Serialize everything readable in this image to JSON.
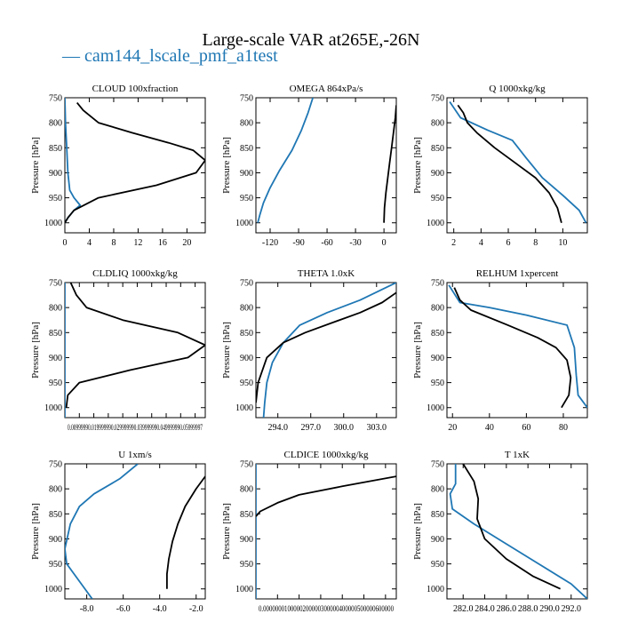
{
  "figure": {
    "title": "Large-scale VAR at265E,-26N",
    "legend_label": "— cam144_lscale_pmf_a1test"
  },
  "colors": {
    "run": "#1f77b4",
    "obs": "#000000"
  },
  "chart_data": [
    {
      "type": "line",
      "title": "CLOUD  100xfraction",
      "ylabel": "Pressure [hPa]",
      "xlim": [
        0,
        23
      ],
      "ylim": [
        1020,
        750
      ],
      "xticks": [
        0,
        4,
        8,
        12,
        16,
        20
      ],
      "xtick_labels": [
        "0",
        "4",
        "8",
        "12",
        "16",
        "20"
      ],
      "yticks": [
        750,
        800,
        850,
        900,
        950,
        1000
      ],
      "ytick_labels": [
        "750",
        "800",
        "850",
        "900",
        "950",
        "1000"
      ],
      "series": [
        {
          "name": "cam144_lscale_pmf_a1test",
          "color": "#1f77b4",
          "x": [
            0,
            0.1,
            0.3,
            0.5,
            0.8,
            1.5,
            2.5,
            1.5,
            0.5,
            0
          ],
          "y": [
            750,
            800,
            850,
            900,
            935,
            950,
            965,
            975,
            990,
            1000
          ]
        },
        {
          "name": "",
          "color": "#000000",
          "x": [
            2,
            3,
            5.5,
            11,
            17,
            21,
            23,
            21.5,
            15,
            5.5,
            1.5,
            0.5,
            0
          ],
          "y": [
            760,
            775,
            800,
            820,
            840,
            855,
            875,
            900,
            925,
            950,
            975,
            990,
            1000
          ]
        }
      ]
    },
    {
      "type": "line",
      "title": "OMEGA  864xPa/s",
      "ylabel": "Pressure [hPa]",
      "xlim": [
        -135,
        13
      ],
      "ylim": [
        1020,
        750
      ],
      "xticks": [
        -120,
        -90,
        -60,
        -30,
        0
      ],
      "xtick_labels": [
        "-120",
        "-90",
        "-60",
        "-30",
        "0"
      ],
      "yticks": [
        750,
        800,
        850,
        900,
        950,
        1000
      ],
      "ytick_labels": [
        "750",
        "800",
        "850",
        "900",
        "950",
        "1000"
      ],
      "series": [
        {
          "name": "cam144_lscale_pmf_a1test",
          "color": "#1f77b4",
          "x": [
            -75,
            -80,
            -87,
            -97,
            -110,
            -120,
            -127,
            -131,
            -133
          ],
          "y": [
            750,
            780,
            815,
            855,
            895,
            930,
            960,
            985,
            1000
          ]
        },
        {
          "name": "",
          "color": "#000000",
          "x": [
            13,
            12,
            10,
            8,
            6,
            4,
            2,
            0.5,
            0
          ],
          "y": [
            765,
            790,
            820,
            850,
            880,
            910,
            940,
            970,
            1000
          ]
        }
      ]
    },
    {
      "type": "line",
      "title": "Q  1000xkg/kg",
      "ylabel": "Pressure [hPa]",
      "xlim": [
        1.5,
        11.8
      ],
      "ylim": [
        1020,
        750
      ],
      "xticks": [
        2,
        4,
        6,
        8,
        10
      ],
      "xtick_labels": [
        "2",
        "4",
        "6",
        "8",
        "10"
      ],
      "yticks": [
        750,
        800,
        850,
        900,
        950,
        1000
      ],
      "ytick_labels": [
        "750",
        "800",
        "850",
        "900",
        "950",
        "1000"
      ],
      "series": [
        {
          "name": "cam144_lscale_pmf_a1test",
          "color": "#1f77b4",
          "x": [
            1.7,
            2.5,
            4.5,
            6.3,
            7.3,
            8.5,
            10.0,
            11.2,
            11.7
          ],
          "y": [
            758,
            790,
            815,
            835,
            870,
            910,
            945,
            975,
            1000
          ]
        },
        {
          "name": "",
          "color": "#000000",
          "x": [
            2.3,
            2.7,
            3.0,
            3.7,
            5.0,
            6.5,
            8.0,
            9.0,
            9.6,
            9.9
          ],
          "y": [
            765,
            780,
            800,
            820,
            850,
            880,
            910,
            940,
            970,
            1000
          ]
        }
      ]
    },
    {
      "type": "line",
      "title": "CLDLIQ  1000xkg/kg",
      "ylabel": "Pressure [hPa]",
      "xlim": [
        0,
        0.097
      ],
      "ylim": [
        1020,
        750
      ],
      "xticks": [
        0.01,
        0.02,
        0.03,
        0.04,
        0.05,
        0.06,
        0.07,
        0.08,
        0.09
      ],
      "xtick_labels": [
        "0.0099999",
        "0.0199999",
        "0.0299999",
        "0.0399999",
        "0.0499999",
        "0.0599999",
        "0.0699999",
        "0.0799999",
        "0.0899999"
      ],
      "bottom_tick_text": "0.00999990.019999990.029999990.039999990.049999990.05999997",
      "yticks": [
        750,
        800,
        850,
        900,
        950,
        1000
      ],
      "ytick_labels": [
        "750",
        "800",
        "850",
        "900",
        "950",
        "1000"
      ],
      "series": [
        {
          "name": "cam144_lscale_pmf_a1test",
          "color": "#1f77b4",
          "x": [
            0,
            0,
            0,
            0,
            0
          ],
          "y": [
            750,
            850,
            950,
            1000,
            1020
          ]
        },
        {
          "name": "",
          "color": "#000000",
          "x": [
            0.004,
            0.008,
            0.015,
            0.04,
            0.078,
            0.097,
            0.085,
            0.045,
            0.01,
            0.002,
            0.001
          ],
          "y": [
            750,
            775,
            800,
            825,
            850,
            875,
            900,
            925,
            950,
            975,
            1000
          ]
        }
      ]
    },
    {
      "type": "line",
      "title": "THETA  1.0xK",
      "ylabel": "Pressure [hPa]",
      "xlim": [
        292.0,
        304.8
      ],
      "ylim": [
        1020,
        750
      ],
      "xticks": [
        294.0,
        297.0,
        300.0,
        303.0
      ],
      "xtick_labels": [
        "294.0",
        "297.0",
        "300.0",
        "303.0"
      ],
      "yticks": [
        750,
        800,
        850,
        900,
        950,
        1000
      ],
      "ytick_labels": [
        "750",
        "800",
        "850",
        "900",
        "950",
        "1000"
      ],
      "series": [
        {
          "name": "cam144_lscale_pmf_a1test",
          "color": "#1f77b4",
          "x": [
            304.8,
            301.5,
            298.5,
            296.0,
            294.5,
            293.5,
            293.0,
            292.8,
            292.7
          ],
          "y": [
            750,
            785,
            810,
            835,
            870,
            910,
            950,
            990,
            1020
          ]
        },
        {
          "name": "",
          "color": "#000000",
          "x": [
            304.8,
            303.5,
            301.5,
            299.0,
            296.5,
            294.5,
            293.0,
            292.2,
            292.0
          ],
          "y": [
            770,
            790,
            810,
            830,
            850,
            870,
            900,
            950,
            990
          ]
        }
      ]
    },
    {
      "type": "line",
      "title": "RELHUM  1xpercent",
      "ylabel": "Pressure [hPa]",
      "xlim": [
        17,
        93
      ],
      "ylim": [
        1020,
        750
      ],
      "xticks": [
        20,
        40,
        60,
        80
      ],
      "xtick_labels": [
        "20",
        "40",
        "60",
        "80"
      ],
      "yticks": [
        750,
        800,
        850,
        900,
        950,
        1000
      ],
      "ytick_labels": [
        "750",
        "800",
        "850",
        "900",
        "950",
        "1000"
      ],
      "series": [
        {
          "name": "cam144_lscale_pmf_a1test",
          "color": "#1f77b4",
          "x": [
            18,
            24,
            40,
            60,
            82,
            86,
            87,
            88,
            93
          ],
          "y": [
            755,
            790,
            800,
            815,
            835,
            880,
            935,
            975,
            1000
          ]
        },
        {
          "name": "",
          "color": "#000000",
          "x": [
            21,
            24,
            30,
            50,
            66,
            76,
            82,
            84,
            83,
            79
          ],
          "y": [
            760,
            785,
            805,
            835,
            860,
            880,
            905,
            940,
            975,
            1000
          ]
        }
      ]
    },
    {
      "type": "line",
      "title": "U  1xm/s",
      "ylabel": "Pressure [hPa]",
      "xlim": [
        -9.2,
        -1.5
      ],
      "ylim": [
        1020,
        750
      ],
      "xticks": [
        -8.0,
        -6.0,
        -4.0,
        -2.0
      ],
      "xtick_labels": [
        "-8.0",
        "-6.0",
        "-4.0",
        "-2.0"
      ],
      "yticks": [
        750,
        800,
        850,
        900,
        950,
        1000
      ],
      "ytick_labels": [
        "750",
        "800",
        "850",
        "900",
        "950",
        "1000"
      ],
      "series": [
        {
          "name": "cam144_lscale_pmf_a1test",
          "color": "#1f77b4",
          "x": [
            -5.2,
            -6.2,
            -7.6,
            -8.4,
            -8.9,
            -9.2,
            -9.1,
            -8.3,
            -7.7
          ],
          "y": [
            750,
            780,
            810,
            835,
            870,
            920,
            950,
            990,
            1020
          ]
        },
        {
          "name": "",
          "color": "#000000",
          "x": [
            -1.5,
            -2.0,
            -2.6,
            -3.0,
            -3.3,
            -3.5,
            -3.6,
            -3.6
          ],
          "y": [
            775,
            800,
            835,
            870,
            905,
            940,
            970,
            1000
          ]
        }
      ]
    },
    {
      "type": "line",
      "title": "CLDICE  1000xkg/kg",
      "ylabel": "Pressure [hPa]",
      "xlim": [
        0,
        0.065
      ],
      "ylim": [
        1020,
        750
      ],
      "xticks": [
        0.0,
        0.01,
        0.02,
        0.03,
        0.04,
        0.05,
        0.06
      ],
      "xtick_labels": [
        "0.000000",
        "0.0100000",
        "0.0200000",
        "0.0300000",
        "0.0400000",
        "0.0500000",
        "0.0600000"
      ],
      "bottom_tick_text": "0.0000000100000200000300000400000500000600000",
      "yticks": [
        750,
        800,
        850,
        900,
        950,
        1000
      ],
      "ytick_labels": [
        "750",
        "800",
        "850",
        "900",
        "950",
        "1000"
      ],
      "series": [
        {
          "name": "cam144_lscale_pmf_a1test",
          "color": "#1f77b4",
          "x": [
            0,
            0,
            0,
            0
          ],
          "y": [
            750,
            850,
            1000,
            1020
          ]
        },
        {
          "name": "",
          "color": "#000000",
          "x": [
            0.065,
            0.04,
            0.02,
            0.01,
            0.002,
            0
          ],
          "y": [
            775,
            795,
            812,
            828,
            845,
            855
          ]
        }
      ]
    },
    {
      "type": "line",
      "title": "T  1xK",
      "ylabel": "Pressure [hPa]",
      "xlim": [
        280.5,
        293.5
      ],
      "ylim": [
        1020,
        750
      ],
      "xticks": [
        282.0,
        284.0,
        286.0,
        288.0,
        290.0,
        292.0
      ],
      "xtick_labels": [
        "282.0",
        "284.0",
        "286.0",
        "288.0",
        "290.0",
        "292.0"
      ],
      "yticks": [
        750,
        800,
        850,
        900,
        950,
        1000
      ],
      "ytick_labels": [
        "750",
        "800",
        "850",
        "900",
        "950",
        "1000"
      ],
      "series": [
        {
          "name": "cam144_lscale_pmf_a1test",
          "color": "#1f77b4",
          "x": [
            281.3,
            281.3,
            280.8,
            281.0,
            283.0,
            286.0,
            289.0,
            292.0,
            293.5
          ],
          "y": [
            750,
            790,
            810,
            840,
            870,
            910,
            950,
            990,
            1020
          ]
        },
        {
          "name": "",
          "color": "#000000",
          "x": [
            282.0,
            283.0,
            283.4,
            283.3,
            284.0,
            286.0,
            288.5,
            291.0
          ],
          "y": [
            750,
            785,
            820,
            860,
            900,
            940,
            975,
            1000
          ]
        }
      ]
    }
  ]
}
